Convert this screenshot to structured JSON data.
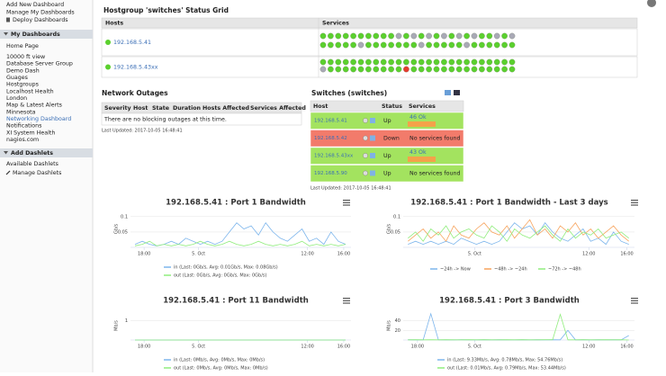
{
  "sidebar": {
    "top": [
      "Add New Dashboard",
      "Manage My Dashboards",
      "Deploy Dashboards"
    ],
    "my_dashboards": {
      "title": "My Dashboards",
      "items": [
        "Home Page",
        "10000 ft view",
        "Database Server Group",
        "Demo Dash",
        "Guages",
        "Hostgroups",
        "Localhost Health",
        "London",
        "Map & Latest Alerts",
        "Minnesota",
        "Networking Dashboard",
        "Notifications",
        "XI System Health",
        "nagios.com"
      ]
    },
    "dashlets": {
      "title": "Add Dashlets",
      "items": [
        "Available Dashlets",
        "Manage Dashlets"
      ]
    }
  },
  "status_grid": {
    "title": "Hostgroup 'switches' Status Grid",
    "columns": [
      "Hosts",
      "Services"
    ],
    "hosts": [
      "192.168.5.41",
      "192.168.5.43xx"
    ]
  },
  "outages": {
    "title": "Network Outages",
    "columns": [
      "Severity",
      "Host",
      "State",
      "Duration",
      "Hosts Affected",
      "Services Affected"
    ],
    "message": "There are no blocking outages at this time.",
    "updated": "Last Updated: 2017-10-05 16:48:41"
  },
  "switches": {
    "title": "Switches (switches)",
    "columns": [
      "Host",
      "Status",
      "Services"
    ],
    "rows": [
      {
        "host": "192.168.5.41",
        "status": "Up",
        "services": "46 Ok",
        "color": "#a3e35f",
        "warn": true
      },
      {
        "host": "192.168.5.42",
        "status": "Down",
        "services": "No services found",
        "color": "#f27b6b",
        "warn": false
      },
      {
        "host": "192.168.5.43xx",
        "status": "Up",
        "services": "43 Ok",
        "color": "#a3e35f",
        "warn": true
      },
      {
        "host": "192.168.5.90",
        "status": "Up",
        "services": "No services found",
        "color": "#a3e35f",
        "warn": false
      }
    ],
    "updated": "Last Updated: 2017-10-05 16:48:41"
  },
  "charts": [
    {
      "type": "line",
      "title": "192.168.5.41 : Port 1 Bandwidth",
      "y_label": "Gb/s",
      "x": [
        17,
        17.8,
        18.6,
        19.4,
        20.2,
        21,
        21.8,
        22.6,
        23.4,
        24.2,
        25,
        25.8,
        26.6,
        27.4,
        28.2,
        29,
        29.8,
        30.6,
        31.4,
        32.2,
        33,
        33.8,
        34.6,
        35.4,
        36.2,
        37,
        37.8,
        38.6,
        39.4,
        40.2
      ],
      "xlim": [
        16.5,
        40.8
      ],
      "xticks": [
        {
          "value": 18,
          "label": "18:00"
        },
        {
          "value": 24,
          "label": "5. Oct"
        },
        {
          "value": 36,
          "label": "12:00"
        },
        {
          "value": 40,
          "label": "16:00"
        }
      ],
      "ylim": [
        0,
        0.12
      ],
      "yticks": [
        0.05,
        0.1
      ],
      "grid": true,
      "series": [
        {
          "name": "in (Last: 0Gb/s, Avg: 0.01Gb/s, Max: 0.08Gb/s)",
          "color": "#7cb5ec",
          "values": [
            0.01,
            0.02,
            0.01,
            0.005,
            0.01,
            0.02,
            0.01,
            0.03,
            0.02,
            0.01,
            0.02,
            0.01,
            0.02,
            0.05,
            0.08,
            0.06,
            0.07,
            0.04,
            0.08,
            0.05,
            0.03,
            0.02,
            0.04,
            0.06,
            0.02,
            0.03,
            0.01,
            0.05,
            0.02,
            0.01
          ]
        },
        {
          "name": "out (Last: 0Gb/s, Avg: 0Gb/s, Max: 0Gb/s)",
          "color": "#90ed7d",
          "values": [
            0.005,
            0.01,
            0.02,
            0.005,
            0.01,
            0.005,
            0.01,
            0.005,
            0.01,
            0.02,
            0.01,
            0.005,
            0.01,
            0.02,
            0.01,
            0.005,
            0.01,
            0.02,
            0.01,
            0.005,
            0.01,
            0.005,
            0.01,
            0.02,
            0.005,
            0.01,
            0.005,
            0.01,
            0.005,
            0.01
          ]
        }
      ]
    },
    {
      "type": "line",
      "title": "192.168.5.41 : Port 1 Bandwidth - Last 3 days",
      "y_label": "Gb/s",
      "x": [
        17,
        17.8,
        18.6,
        19.4,
        20.2,
        21,
        21.8,
        22.6,
        23.4,
        24.2,
        25,
        25.8,
        26.6,
        27.4,
        28.2,
        29,
        29.8,
        30.6,
        31.4,
        32.2,
        33,
        33.8,
        34.6,
        35.4,
        36.2,
        37,
        37.8,
        38.6,
        39.4,
        40.2
      ],
      "xlim": [
        16.5,
        40.8
      ],
      "xticks": [
        {
          "value": 24,
          "label": "5. Oct"
        },
        {
          "value": 36,
          "label": "12:00"
        },
        {
          "value": 40,
          "label": "16:00"
        }
      ],
      "ylim": [
        0,
        0.12
      ],
      "yticks": [
        0.05,
        0.1
      ],
      "grid": true,
      "series": [
        {
          "name": "~24h -> Now",
          "color": "#7cb5ec",
          "values": [
            0.01,
            0.02,
            0.01,
            0.02,
            0.01,
            0.02,
            0.01,
            0.03,
            0.02,
            0.01,
            0.02,
            0.01,
            0.02,
            0.05,
            0.08,
            0.06,
            0.07,
            0.04,
            0.08,
            0.05,
            0.03,
            0.02,
            0.04,
            0.06,
            0.02,
            0.03,
            0.01,
            0.05,
            0.02,
            0.01
          ]
        },
        {
          "name": "~48h -> ~24h",
          "color": "#f7a35c",
          "values": [
            0.02,
            0.04,
            0.06,
            0.03,
            0.05,
            0.02,
            0.07,
            0.04,
            0.03,
            0.06,
            0.08,
            0.05,
            0.04,
            0.07,
            0.03,
            0.06,
            0.09,
            0.04,
            0.06,
            0.03,
            0.07,
            0.05,
            0.08,
            0.04,
            0.06,
            0.03,
            0.05,
            0.07,
            0.04,
            0.02
          ]
        },
        {
          "name": "~72h -> ~48h",
          "color": "#90ed7d",
          "values": [
            0.03,
            0.05,
            0.02,
            0.06,
            0.04,
            0.07,
            0.03,
            0.05,
            0.06,
            0.04,
            0.03,
            0.07,
            0.05,
            0.02,
            0.06,
            0.04,
            0.03,
            0.05,
            0.07,
            0.04,
            0.02,
            0.06,
            0.03,
            0.05,
            0.04,
            0.06,
            0.03,
            0.04,
            0.05,
            0.03
          ]
        }
      ]
    },
    {
      "type": "line",
      "title": "192.168.5.41 : Port 11 Bandwidth",
      "y_label": "Mb/s",
      "x": [
        17,
        17.8,
        18.6,
        19.4,
        20.2,
        21,
        21.8,
        22.6,
        23.4,
        24.2,
        25,
        25.8,
        26.6,
        27.4,
        28.2,
        29,
        29.8,
        30.6,
        31.4,
        32.2,
        33,
        33.8,
        34.6,
        35.4,
        36.2,
        37,
        37.8,
        38.6,
        39.4,
        40.2
      ],
      "xlim": [
        16.5,
        40.8
      ],
      "xticks": [
        {
          "value": 18,
          "label": "18:00"
        },
        {
          "value": 24,
          "label": "5. Oct"
        },
        {
          "value": 36,
          "label": "12:00"
        },
        {
          "value": 40,
          "label": "16:00"
        }
      ],
      "ylim": [
        0,
        1.5
      ],
      "yticks": [
        1
      ],
      "grid": true,
      "series": [
        {
          "name": "in (Last: 0Mb/s, Avg: 0Mb/s, Max: 0Mb/s)",
          "color": "#7cb5ec",
          "values": [
            0,
            0,
            0,
            0,
            0,
            0,
            0,
            0,
            0,
            0,
            0,
            0,
            0,
            0,
            0,
            0,
            0,
            0,
            0,
            0,
            0,
            0,
            0,
            0,
            0,
            0,
            0,
            0,
            0,
            0
          ]
        },
        {
          "name": "out (Last: 0Mb/s, Avg: 0Mb/s, Max: 0Mb/s)",
          "color": "#90ed7d",
          "values": [
            0,
            0,
            0,
            0,
            0,
            0,
            0,
            0,
            0,
            0,
            0,
            0,
            0,
            0,
            0,
            0,
            0,
            0,
            0,
            0,
            0,
            0,
            0,
            0,
            0,
            0,
            0,
            0,
            0,
            0
          ]
        }
      ]
    },
    {
      "type": "line",
      "title": "192.168.5.41 : Port 3 Bandwidth",
      "y_label": "Mb/s",
      "x": [
        17,
        17.8,
        18.6,
        19.4,
        20.2,
        21,
        21.8,
        22.6,
        23.4,
        24.2,
        25,
        25.8,
        26.6,
        27.4,
        28.2,
        29,
        29.8,
        30.6,
        31.4,
        32.2,
        33,
        33.8,
        34.6,
        35.4,
        36.2,
        37,
        37.8,
        38.6,
        39.4,
        40.2
      ],
      "xlim": [
        16.5,
        40.8
      ],
      "xticks": [
        {
          "value": 18,
          "label": "18:00"
        },
        {
          "value": 24,
          "label": "5. Oct"
        },
        {
          "value": 36,
          "label": "12:00"
        },
        {
          "value": 40,
          "label": "16:00"
        }
      ],
      "ylim": [
        0,
        60
      ],
      "yticks": [
        20,
        40
      ],
      "grid": true,
      "series": [
        {
          "name": "in (Last: 9.33Mb/s, Avg: 0.78Mb/s, Max: 54.76Mb/s)",
          "color": "#7cb5ec",
          "values": [
            0.5,
            0.3,
            0.4,
            54.76,
            0.6,
            0.3,
            0.4,
            0.5,
            0.3,
            0.4,
            0.6,
            0.3,
            0.5,
            0.4,
            0.3,
            0.5,
            0.4,
            0.6,
            0.3,
            0.5,
            0.4,
            20,
            0.3,
            0.5,
            0.4,
            0.6,
            0.3,
            0.5,
            0.4,
            9.33
          ]
        },
        {
          "name": "out (Last: 0.01Mb/s, Avg: 0.79Mb/s, Max: 53.44Mb/s)",
          "color": "#90ed7d",
          "values": [
            0.4,
            0.5,
            0.3,
            0.6,
            0.4,
            0.5,
            0.3,
            0.4,
            0.6,
            0.3,
            0.5,
            0.4,
            0.3,
            0.6,
            0.4,
            0.5,
            0.3,
            0.4,
            0.5,
            0.6,
            53.44,
            0.4,
            0.3,
            0.5,
            0.4,
            0.3,
            0.6,
            0.4,
            0.5,
            0.01
          ]
        }
      ]
    }
  ]
}
